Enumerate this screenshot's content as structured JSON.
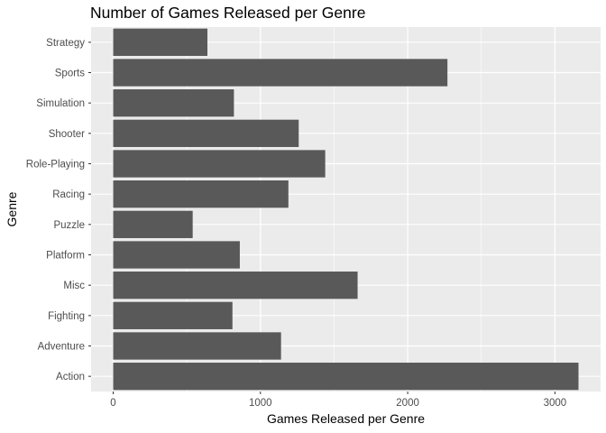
{
  "chart_data": {
    "type": "bar",
    "orientation": "horizontal",
    "title": "Number of Games Released per Genre",
    "xlabel": "Games Released per Genre",
    "ylabel": "Genre",
    "categories": [
      "Action",
      "Adventure",
      "Fighting",
      "Misc",
      "Platform",
      "Puzzle",
      "Racing",
      "Role-Playing",
      "Shooter",
      "Simulation",
      "Sports",
      "Strategy"
    ],
    "values": [
      3160,
      1140,
      810,
      1660,
      860,
      540,
      1190,
      1440,
      1260,
      820,
      2270,
      640
    ],
    "xlim": [
      -150,
      3310
    ],
    "xticks": [
      0,
      1000,
      2000,
      3000
    ],
    "xtick_labels": [
      "0",
      "1000",
      "2000",
      "3000"
    ],
    "grid": true,
    "colors": {
      "bar": "#595959",
      "panel": "#ebebeb",
      "grid": "#ffffff",
      "tick_text": "#4d4d4d",
      "tick_mark": "#333333"
    }
  }
}
